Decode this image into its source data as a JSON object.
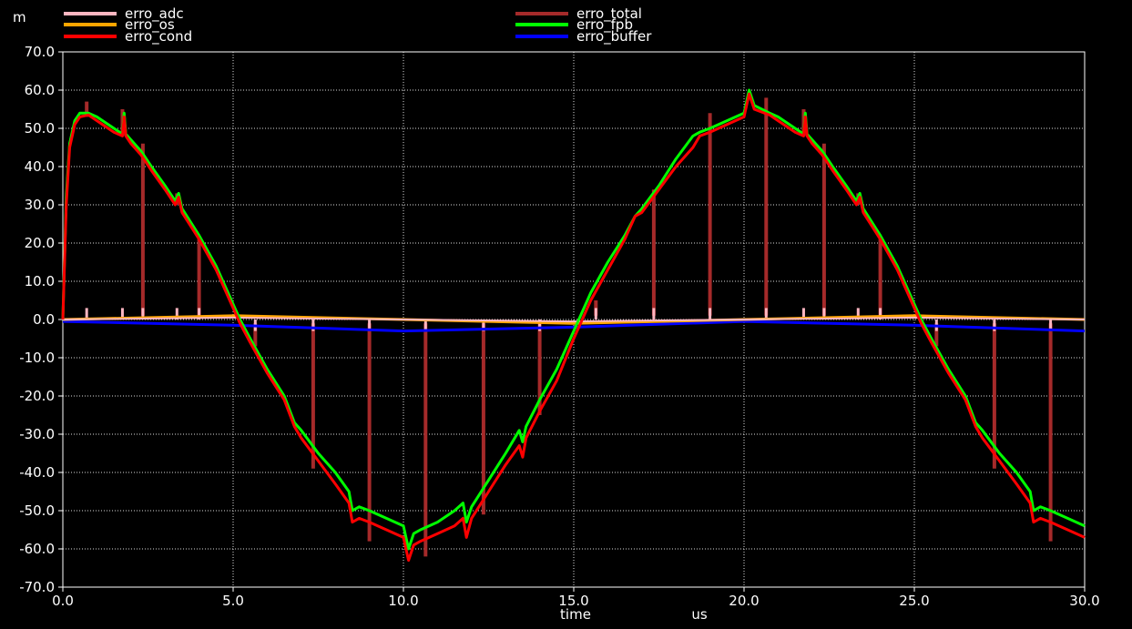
{
  "chart_data": {
    "type": "line",
    "y_unit": "m",
    "x_axis_title": "time",
    "x_unit": "us",
    "xlim": [
      0,
      30
    ],
    "ylim": [
      -70,
      70
    ],
    "x_ticks": [
      0,
      5,
      10,
      15,
      20,
      25,
      30
    ],
    "x_tick_labels": [
      "0.0",
      "5.0",
      "10.0",
      "15.0",
      "20.0",
      "25.0",
      "30.0"
    ],
    "y_ticks": [
      70,
      60,
      50,
      40,
      30,
      20,
      10,
      0,
      -10,
      -20,
      -30,
      -40,
      -50,
      -60,
      -70
    ],
    "y_tick_labels": [
      "70.0",
      "60.0",
      "50.0",
      "40.0",
      "30.0",
      "20.0",
      "10.0",
      "0.0",
      "-10.0",
      "-20.0",
      "-30.0",
      "-40.0",
      "-50.0",
      "-60.0",
      "-70.0"
    ],
    "grid": true,
    "legend_position": "top",
    "series": [
      {
        "name": "erro_adc",
        "color": "#ffb6c1"
      },
      {
        "name": "erro_total",
        "color": "#a52a2a"
      },
      {
        "name": "erro_os",
        "color": "#ffa500"
      },
      {
        "name": "erro_fpb",
        "color": "#00ff00"
      },
      {
        "name": "erro_cond",
        "color": "#ff0000"
      },
      {
        "name": "erro_buffer",
        "color": "#0000ff"
      }
    ],
    "erro_cond_points": [
      [
        0,
        0
      ],
      [
        0.1,
        30
      ],
      [
        0.2,
        45
      ],
      [
        0.35,
        51
      ],
      [
        0.5,
        53
      ],
      [
        0.75,
        53.5
      ],
      [
        1.0,
        52
      ],
      [
        1.5,
        49
      ],
      [
        1.75,
        48
      ],
      [
        1.8,
        53
      ],
      [
        1.85,
        48
      ],
      [
        2.0,
        46
      ],
      [
        2.3,
        43
      ],
      [
        2.6,
        39
      ],
      [
        3.0,
        34
      ],
      [
        3.3,
        30
      ],
      [
        3.4,
        32
      ],
      [
        3.5,
        28
      ],
      [
        4.0,
        21
      ],
      [
        4.5,
        13
      ],
      [
        5.0,
        3
      ],
      [
        5.2,
        -1
      ],
      [
        5.5,
        -6
      ],
      [
        6.0,
        -14
      ],
      [
        6.5,
        -21
      ],
      [
        6.8,
        -28
      ],
      [
        7.0,
        -31
      ],
      [
        7.5,
        -37
      ],
      [
        8.0,
        -43
      ],
      [
        8.4,
        -48
      ],
      [
        8.5,
        -53
      ],
      [
        8.7,
        -52
      ],
      [
        9.0,
        -53
      ],
      [
        9.5,
        -55
      ],
      [
        10.0,
        -57
      ],
      [
        10.15,
        -63
      ],
      [
        10.3,
        -59
      ],
      [
        10.5,
        -58
      ],
      [
        11.0,
        -56
      ],
      [
        11.5,
        -54
      ],
      [
        11.75,
        -52
      ],
      [
        11.85,
        -57
      ],
      [
        12.0,
        -52
      ],
      [
        12.5,
        -45
      ],
      [
        13.0,
        -38
      ],
      [
        13.4,
        -33
      ],
      [
        13.5,
        -36
      ],
      [
        13.6,
        -31
      ],
      [
        14.0,
        -24
      ],
      [
        14.5,
        -16
      ],
      [
        15.0,
        -5
      ],
      [
        15.5,
        5
      ],
      [
        16.0,
        13
      ],
      [
        16.5,
        21
      ],
      [
        16.8,
        27
      ],
      [
        17.0,
        28
      ],
      [
        17.5,
        34
      ],
      [
        18.0,
        40
      ],
      [
        18.5,
        45
      ],
      [
        18.7,
        48
      ],
      [
        19.0,
        49
      ],
      [
        19.5,
        51
      ],
      [
        20.0,
        53
      ],
      [
        20.15,
        59
      ],
      [
        20.3,
        55
      ],
      [
        20.75,
        53.5
      ],
      [
        21.0,
        52
      ],
      [
        21.5,
        49
      ],
      [
        21.75,
        48
      ],
      [
        21.8,
        53
      ],
      [
        21.85,
        48
      ],
      [
        22.0,
        46
      ],
      [
        22.3,
        43
      ],
      [
        22.6,
        39
      ],
      [
        23.0,
        34
      ],
      [
        23.3,
        30
      ],
      [
        23.4,
        32
      ],
      [
        23.5,
        28
      ],
      [
        24.0,
        21
      ],
      [
        24.5,
        13
      ],
      [
        25.0,
        3
      ],
      [
        25.2,
        -1
      ],
      [
        25.5,
        -6
      ],
      [
        26.0,
        -14
      ],
      [
        26.5,
        -21
      ],
      [
        26.8,
        -28
      ],
      [
        27.0,
        -31
      ],
      [
        27.5,
        -37
      ],
      [
        28.0,
        -43
      ],
      [
        28.4,
        -48
      ],
      [
        28.5,
        -53
      ],
      [
        28.7,
        -52
      ],
      [
        29.0,
        -53
      ],
      [
        29.5,
        -55
      ],
      [
        30.0,
        -57
      ]
    ],
    "erro_fpb_points": [
      [
        0,
        0
      ],
      [
        0.1,
        32
      ],
      [
        0.2,
        46
      ],
      [
        0.35,
        52
      ],
      [
        0.5,
        54
      ],
      [
        0.75,
        54
      ],
      [
        1.0,
        53
      ],
      [
        1.5,
        50
      ],
      [
        1.75,
        48.5
      ],
      [
        1.8,
        54
      ],
      [
        1.85,
        48.5
      ],
      [
        2.0,
        47
      ],
      [
        2.3,
        44
      ],
      [
        2.6,
        40
      ],
      [
        3.0,
        35
      ],
      [
        3.3,
        31
      ],
      [
        3.4,
        33
      ],
      [
        3.5,
        29
      ],
      [
        4.0,
        22
      ],
      [
        4.5,
        14
      ],
      [
        5.0,
        4
      ],
      [
        5.2,
        0
      ],
      [
        5.5,
        -5
      ],
      [
        6.0,
        -13
      ],
      [
        6.5,
        -20
      ],
      [
        6.8,
        -27
      ],
      [
        7.0,
        -29
      ],
      [
        7.5,
        -35
      ],
      [
        8.0,
        -40
      ],
      [
        8.4,
        -45
      ],
      [
        8.5,
        -50
      ],
      [
        8.7,
        -49
      ],
      [
        9.0,
        -50
      ],
      [
        9.5,
        -52
      ],
      [
        10.0,
        -54
      ],
      [
        10.15,
        -60
      ],
      [
        10.3,
        -56
      ],
      [
        10.5,
        -55
      ],
      [
        11.0,
        -53
      ],
      [
        11.5,
        -50
      ],
      [
        11.75,
        -48
      ],
      [
        11.85,
        -53
      ],
      [
        12.0,
        -49
      ],
      [
        12.5,
        -42
      ],
      [
        13.0,
        -35
      ],
      [
        13.4,
        -29
      ],
      [
        13.5,
        -32
      ],
      [
        13.6,
        -28
      ],
      [
        14.0,
        -21
      ],
      [
        14.5,
        -13
      ],
      [
        15.0,
        -3
      ],
      [
        15.5,
        7
      ],
      [
        16.0,
        15
      ],
      [
        16.5,
        22
      ],
      [
        16.8,
        27
      ],
      [
        17.0,
        29
      ],
      [
        17.5,
        35
      ],
      [
        18.0,
        42
      ],
      [
        18.5,
        48
      ],
      [
        18.7,
        49
      ],
      [
        19.0,
        50
      ],
      [
        19.5,
        52
      ],
      [
        20.0,
        54
      ],
      [
        20.15,
        60
      ],
      [
        20.3,
        56
      ],
      [
        20.75,
        54
      ],
      [
        21.0,
        53
      ],
      [
        21.5,
        50
      ],
      [
        21.75,
        48.5
      ],
      [
        21.8,
        54
      ],
      [
        21.85,
        48.5
      ],
      [
        22.0,
        47
      ],
      [
        22.3,
        44
      ],
      [
        22.6,
        40
      ],
      [
        23.0,
        35
      ],
      [
        23.3,
        31
      ],
      [
        23.4,
        33
      ],
      [
        23.5,
        29
      ],
      [
        24.0,
        22
      ],
      [
        24.5,
        14
      ],
      [
        25.0,
        4
      ],
      [
        25.2,
        0
      ],
      [
        25.5,
        -5
      ],
      [
        26.0,
        -13
      ],
      [
        26.5,
        -20
      ],
      [
        26.8,
        -27
      ],
      [
        27.0,
        -29
      ],
      [
        27.5,
        -35
      ],
      [
        28.0,
        -40
      ],
      [
        28.4,
        -45
      ],
      [
        28.5,
        -50
      ],
      [
        28.7,
        -49
      ],
      [
        29.0,
        -50
      ],
      [
        29.5,
        -52
      ],
      [
        30.0,
        -54
      ]
    ],
    "erro_os_points": [
      [
        0,
        0
      ],
      [
        5,
        1
      ],
      [
        10,
        0
      ],
      [
        15,
        -1
      ],
      [
        20,
        0
      ],
      [
        25,
        1
      ],
      [
        30,
        0
      ]
    ],
    "erro_buffer_points": [
      [
        0,
        -0.5
      ],
      [
        5,
        -1.5
      ],
      [
        10,
        -3
      ],
      [
        15,
        -2
      ],
      [
        20,
        -0.5
      ],
      [
        25,
        -1.5
      ],
      [
        30,
        -3
      ]
    ],
    "erro_adc_points": [
      [
        0,
        0
      ],
      [
        5,
        0.5
      ],
      [
        10,
        0
      ],
      [
        15,
        -0.5
      ],
      [
        20,
        0
      ],
      [
        25,
        0.5
      ],
      [
        30,
        0
      ]
    ],
    "erro_total_spikes": [
      {
        "x": 0.7,
        "top": 57,
        "base": 53
      },
      {
        "x": 1.75,
        "top": 55,
        "base": 48
      },
      {
        "x": 2.35,
        "top": 46,
        "base": 1
      },
      {
        "x": 3.35,
        "top": 33,
        "base": 30
      },
      {
        "x": 4.0,
        "top": 21,
        "base": 1
      },
      {
        "x": 5.65,
        "top": -1,
        "base": -7
      },
      {
        "x": 7.35,
        "top": -1,
        "base": -39
      },
      {
        "x": 9.0,
        "top": -1,
        "base": -58
      },
      {
        "x": 10.65,
        "top": -1,
        "base": -62
      },
      {
        "x": 12.35,
        "top": -1,
        "base": -51
      },
      {
        "x": 14.0,
        "top": -1,
        "base": -25
      },
      {
        "x": 15.65,
        "top": 5,
        "base": 1
      },
      {
        "x": 17.35,
        "top": 34,
        "base": 1
      },
      {
        "x": 19.0,
        "top": 54,
        "base": 1
      },
      {
        "x": 20.65,
        "top": 58,
        "base": 1
      },
      {
        "x": 21.75,
        "top": 55,
        "base": 48
      },
      {
        "x": 22.35,
        "top": 46,
        "base": 1
      },
      {
        "x": 23.35,
        "top": 33,
        "base": 30
      },
      {
        "x": 24.0,
        "top": 21,
        "base": 1
      },
      {
        "x": 25.65,
        "top": -1,
        "base": -7
      },
      {
        "x": 27.35,
        "top": -1,
        "base": -39
      },
      {
        "x": 29.0,
        "top": -1,
        "base": -58
      }
    ]
  }
}
